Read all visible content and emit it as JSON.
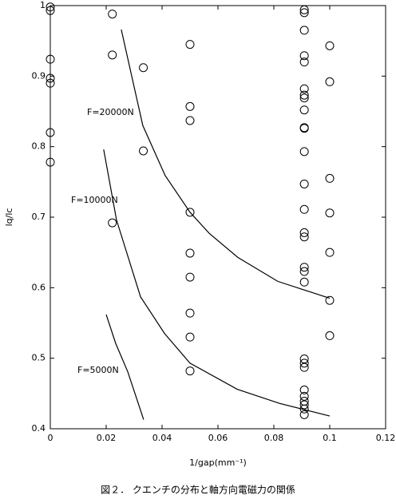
{
  "chart_data": {
    "type": "scatter",
    "x_label": "1/gap(mm⁻¹)",
    "y_label": "lq/lc",
    "caption": "図２． クエンチの分布と軸方向電磁力の関係",
    "xlim": [
      0,
      0.12
    ],
    "ylim": [
      0.4,
      1
    ],
    "xticks": [
      0,
      0.02,
      0.04,
      0.06,
      0.08,
      0.1,
      0.12
    ],
    "yticks": [
      0.4,
      0.5,
      0.6,
      0.7,
      0.8,
      0.9,
      1
    ],
    "color": "#000000",
    "x": [
      0,
      0,
      0,
      0,
      0,
      0,
      0,
      0.0222,
      0.0222,
      0.0222,
      0.0333,
      0.0333,
      0.05,
      0.05,
      0.05,
      0.05,
      0.05,
      0.05,
      0.05,
      0.05,
      0.05,
      0.0909,
      0.0909,
      0.0909,
      0.0909,
      0.0909,
      0.0909,
      0.0909,
      0.0909,
      0.0909,
      0.0909,
      0.0909,
      0.0909,
      0.0909,
      0.0909,
      0.0909,
      0.0909,
      0.0909,
      0.0909,
      0.0909,
      0.0909,
      0.0909,
      0.0909,
      0.0909,
      0.0909,
      0.0909,
      0.0909,
      0.0909,
      0.0909,
      0.1,
      0.1,
      0.1,
      0.1,
      0.1,
      0.1,
      0.1
    ],
    "values": [
      0.998,
      0.993,
      0.924,
      0.897,
      0.89,
      0.82,
      0.778,
      0.988,
      0.93,
      0.692,
      0.912,
      0.794,
      0.945,
      0.857,
      0.837,
      0.707,
      0.649,
      0.615,
      0.564,
      0.53,
      0.482,
      0.994,
      0.99,
      0.965,
      0.929,
      0.92,
      0.882,
      0.873,
      0.869,
      0.852,
      0.827,
      0.826,
      0.793,
      0.747,
      0.711,
      0.678,
      0.672,
      0.629,
      0.623,
      0.608,
      0.499,
      0.493,
      0.487,
      0.455,
      0.446,
      0.439,
      0.434,
      0.428,
      0.42,
      0.943,
      0.892,
      0.755,
      0.706,
      0.65,
      0.582,
      0.532
    ],
    "lines": [
      {
        "name": "F=20000N",
        "x": [
          0.0254,
          0.0331,
          0.0411,
          0.05,
          0.0569,
          0.0671,
          0.0814,
          0.1
        ],
        "values": [
          0.966,
          0.83,
          0.759,
          0.707,
          0.677,
          0.643,
          0.609,
          0.585
        ]
      },
      {
        "name": "F=10000N",
        "x": [
          0.0191,
          0.0237,
          0.0323,
          0.0409,
          0.05,
          0.0669,
          0.082,
          0.1
        ],
        "values": [
          0.796,
          0.696,
          0.587,
          0.535,
          0.493,
          0.456,
          0.436,
          0.418
        ]
      },
      {
        "name": "F=5000N",
        "x": [
          0.02,
          0.0234,
          0.0277,
          0.0334
        ],
        "values": [
          0.562,
          0.521,
          0.481,
          0.413
        ]
      }
    ]
  }
}
